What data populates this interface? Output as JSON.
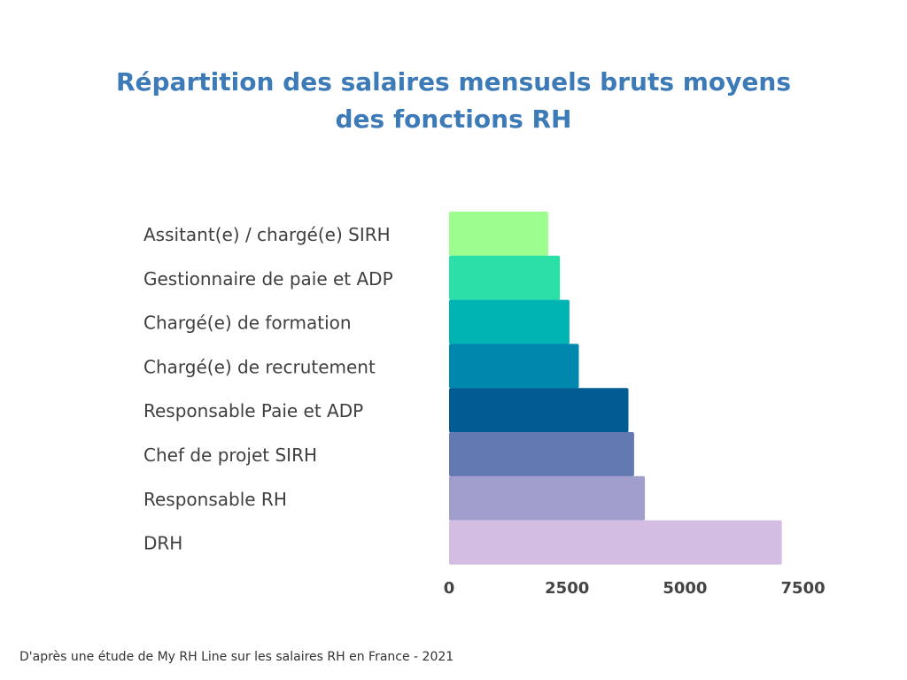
{
  "title_line1": "Répartition des salaires mensuels bruts moyens",
  "title_line2": "des fonctions RH",
  "source": "D'après une étude de My RH Line sur les salaires RH en France - 2021",
  "chart_data": {
    "type": "bar",
    "orientation": "horizontal",
    "categories": [
      "Assitant(e) / chargé(e) SIRH",
      "Gestionnaire de paie et ADP",
      "Chargé(e) de formation",
      "Chargé(e) de recrutement",
      "Responsable Paie et ADP",
      "Chef de projet SIRH",
      "Responsable RH",
      "DRH"
    ],
    "values": [
      2100,
      2350,
      2550,
      2750,
      3800,
      3920,
      4150,
      7050
    ],
    "colors": [
      "#9dfd8e",
      "#2adfa8",
      "#00b4b4",
      "#0087ad",
      "#005c92",
      "#6379b2",
      "#a19ecb",
      "#d3bde3"
    ],
    "xticks": [
      "0",
      "2500",
      "5000",
      "7500"
    ],
    "xtick_values": [
      0,
      2500,
      5000,
      7500
    ],
    "xlim": [
      0,
      7500
    ],
    "grid": false,
    "legend": false
  }
}
